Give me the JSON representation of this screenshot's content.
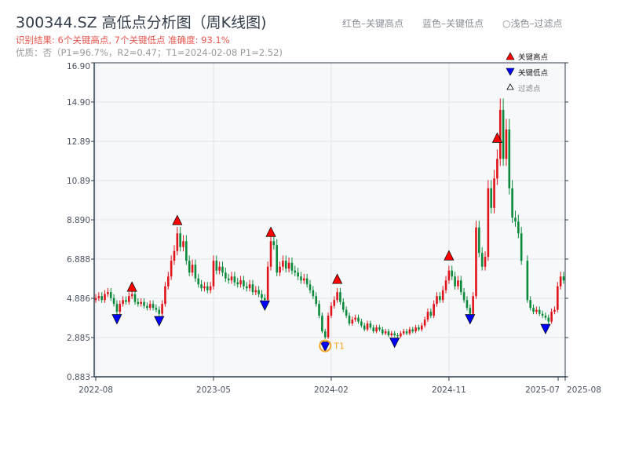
{
  "header": {
    "title": "300344.SZ 高低点分析图（周K线图)",
    "result": "识别结果: 6个关键高点, 7个关键低点  准确度: 93.1%",
    "quality": "优质：否（P1=96.7%，R2=0.47；T1=2024-02-08 P1=2.52)",
    "legend_high": "红色–关键高点",
    "legend_low": "蓝色–关键低点",
    "legend_filtered": "○浅色–过滤点"
  },
  "colors": {
    "up": "#e0141b",
    "down": "#0a8a3a",
    "high": "#ff0000",
    "low": "#0000ff",
    "t1": "#f5a623"
  },
  "chart_data": {
    "type": "candlestick",
    "ylim": [
      0.883,
      16.9
    ],
    "yticks": [
      "0.883",
      "2.885",
      "4.886",
      "6.888",
      "8.890",
      "10.89",
      "12.89",
      "14.90",
      "16.90"
    ],
    "ytick_values": [
      0.883,
      2.885,
      4.886,
      6.888,
      8.89,
      10.89,
      12.89,
      14.9,
      16.9
    ],
    "xticks": [
      "2022-08",
      "2023-05",
      "2024-02",
      "2024-11",
      "2025-07",
      "2025-08"
    ],
    "xtick_index": [
      0,
      39,
      78,
      117,
      154,
      156
    ],
    "legend": {
      "high": "关键高点",
      "low": "关键低点",
      "filtered": "过滤点"
    },
    "closes": [
      4.9,
      5.0,
      4.8,
      5.1,
      5.2,
      4.9,
      4.6,
      4.2,
      4.6,
      4.8,
      4.7,
      5.0,
      5.1,
      4.7,
      4.6,
      4.7,
      4.5,
      4.4,
      4.6,
      4.4,
      4.3,
      4.1,
      4.6,
      5.5,
      6.0,
      6.8,
      7.3,
      8.2,
      7.5,
      7.8,
      6.8,
      6.2,
      6.6,
      5.9,
      5.6,
      5.4,
      5.5,
      5.3,
      5.5,
      6.8,
      6.3,
      6.5,
      6.2,
      5.9,
      5.8,
      6.0,
      5.7,
      5.6,
      5.8,
      5.5,
      5.4,
      5.6,
      5.2,
      5.3,
      5.1,
      4.9,
      4.8,
      6.5,
      7.8,
      7.6,
      6.2,
      6.5,
      6.8,
      6.4,
      6.7,
      6.3,
      6.2,
      6.0,
      5.8,
      5.9,
      5.6,
      5.3,
      5.0,
      4.6,
      4.0,
      3.2,
      2.9,
      4.0,
      4.5,
      4.8,
      5.2,
      4.7,
      4.3,
      4.0,
      3.6,
      3.8,
      3.9,
      3.7,
      3.5,
      3.3,
      3.6,
      3.4,
      3.2,
      3.4,
      3.3,
      3.1,
      3.2,
      3.0,
      3.1,
      3.0,
      2.95,
      3.1,
      3.2,
      3.1,
      3.3,
      3.2,
      3.4,
      3.3,
      3.5,
      3.8,
      4.2,
      4.0,
      4.6,
      5.0,
      4.8,
      5.3,
      5.8,
      6.3,
      6.0,
      5.5,
      5.8,
      5.2,
      4.8,
      4.4,
      4.1,
      5.0,
      8.5,
      7.2,
      6.5,
      7.0,
      10.5,
      9.5,
      11.0,
      12.0,
      14.5,
      12.0,
      13.5,
      10.5,
      9.0,
      8.8,
      8.2,
      6.8,
      null,
      4.8,
      4.4,
      4.2,
      4.3,
      4.1,
      4.0,
      3.9,
      3.7,
      4.2,
      4.3,
      5.5,
      6.0,
      5.8
    ],
    "key_highs": [
      {
        "i": 12,
        "price": 5.2
      },
      {
        "i": 27,
        "price": 8.6
      },
      {
        "i": 58,
        "price": 8.0
      },
      {
        "i": 80,
        "price": 5.6
      },
      {
        "i": 117,
        "price": 6.8
      },
      {
        "i": 133,
        "price": 12.8
      }
    ],
    "key_lows": [
      {
        "i": 7,
        "price": 4.1
      },
      {
        "i": 21,
        "price": 4.0
      },
      {
        "i": 56,
        "price": 4.8
      },
      {
        "i": 76,
        "price": 2.7
      },
      {
        "i": 99,
        "price": 2.9
      },
      {
        "i": 124,
        "price": 4.1
      },
      {
        "i": 149,
        "price": 3.6
      }
    ],
    "annotation": {
      "i": 76,
      "price": 2.7,
      "label": "T1"
    }
  }
}
